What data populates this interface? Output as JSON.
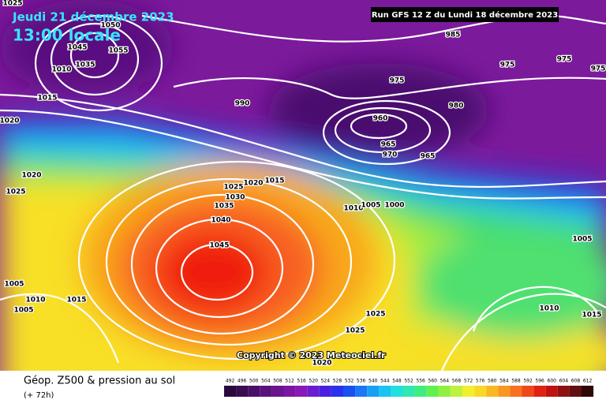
{
  "header": {
    "date": "Jeudi 21 décembre 2023",
    "time": "13:00 locale",
    "run": "Run GFS 12 Z du Lundi 18 décembre 2023"
  },
  "isobar_labels": [
    1025,
    1050,
    1045,
    1055,
    1010,
    1035,
    1015,
    1020,
    985,
    975,
    975,
    975,
    975,
    990,
    980,
    960,
    965,
    970,
    965,
    1025,
    1020,
    1025,
    1020,
    1015,
    1030,
    1035,
    1040,
    1045,
    1010,
    1005,
    1000,
    1005,
    1005,
    1010,
    1015,
    1005,
    1025,
    1010,
    1015,
    1025,
    1020
  ],
  "footer": {
    "title": "Géop. Z500 & pression au sol",
    "lead": "(+ 72h)",
    "copyright": "Copyright © 2023 Meteociel.fr"
  },
  "colorbar": {
    "labels": [
      492,
      496,
      500,
      504,
      508,
      512,
      516,
      520,
      524,
      528,
      532,
      536,
      540,
      544,
      548,
      552,
      556,
      560,
      564,
      568,
      572,
      576,
      580,
      584,
      588,
      592,
      596,
      600,
      604,
      608,
      612
    ]
  }
}
